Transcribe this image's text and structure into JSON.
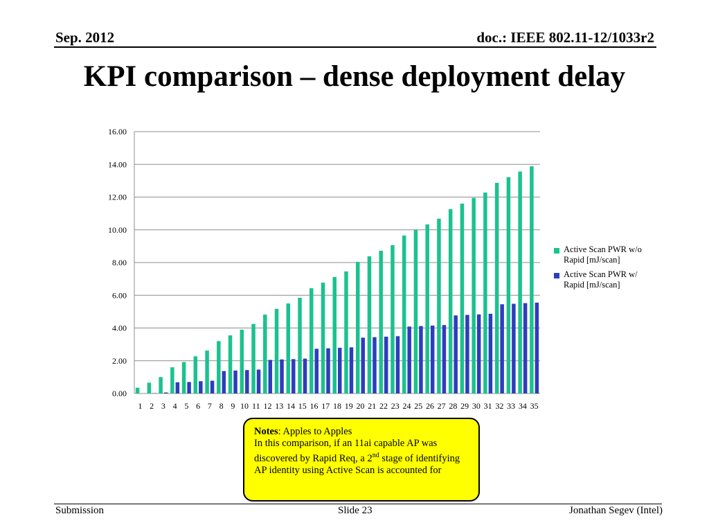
{
  "header": {
    "date": "Sep.   2012",
    "doc_id": "doc.: IEEE 802.11-12/1033r2"
  },
  "slide_title": "KPI comparison – dense deployment delay",
  "chart_data": {
    "type": "bar",
    "categories": [
      "1",
      "2",
      "3",
      "4",
      "5",
      "6",
      "7",
      "8",
      "9",
      "10",
      "11",
      "12",
      "13",
      "14",
      "15",
      "16",
      "17",
      "18",
      "19",
      "20",
      "21",
      "22",
      "23",
      "24",
      "25",
      "26",
      "27",
      "28",
      "29",
      "30",
      "31",
      "32",
      "33",
      "34",
      "35"
    ],
    "series": [
      {
        "name": "Active Scan PWR w/o Rapid [mJ/scan]",
        "color": "#1bc28f",
        "values": [
          0.35,
          0.66,
          1.0,
          1.6,
          1.92,
          2.27,
          2.62,
          3.2,
          3.55,
          3.9,
          4.25,
          4.82,
          5.17,
          5.5,
          5.85,
          6.43,
          6.77,
          7.12,
          7.46,
          8.04,
          8.38,
          8.72,
          9.06,
          9.65,
          10.0,
          10.33,
          10.68,
          11.26,
          11.6,
          11.95,
          12.28,
          12.87,
          13.22,
          13.56,
          13.88
        ]
      },
      {
        "name": "Active Scan PWR  w/ Rapid [mJ/scan]",
        "color": "#2e3dbd",
        "values": [
          0.0,
          0.02,
          0.06,
          0.68,
          0.7,
          0.75,
          0.78,
          1.37,
          1.4,
          1.43,
          1.46,
          2.05,
          2.08,
          2.1,
          2.13,
          2.73,
          2.76,
          2.79,
          2.82,
          3.41,
          3.44,
          3.47,
          3.5,
          4.09,
          4.12,
          4.15,
          4.18,
          4.77,
          4.8,
          4.83,
          4.87,
          5.45,
          5.48,
          5.52,
          5.55
        ]
      }
    ],
    "yticks": [
      "0.00",
      "2.00",
      "4.00",
      "6.00",
      "8.00",
      "10.00",
      "12.00",
      "14.00",
      "16.00"
    ],
    "ylim": [
      0,
      16
    ],
    "grid": true,
    "legend": "right",
    "legend_labels": [
      [
        "Active Scan PWR w/o",
        "Rapid [mJ/scan]"
      ],
      [
        "Active Scan PWR  w/",
        "Rapid [mJ/scan]"
      ]
    ]
  },
  "note": {
    "label": "Notes",
    "line1": ": Apples to Apples",
    "line2": "In this comparison, if an 11ai capable AP was discovered by Rapid Req, a 2",
    "superscript": "nd",
    "line3": " stage of identifying AP identity using Active Scan is accounted for"
  },
  "footer": {
    "left": "Submission",
    "center": "Slide 23",
    "right": "Jonathan Segev (Intel)"
  }
}
